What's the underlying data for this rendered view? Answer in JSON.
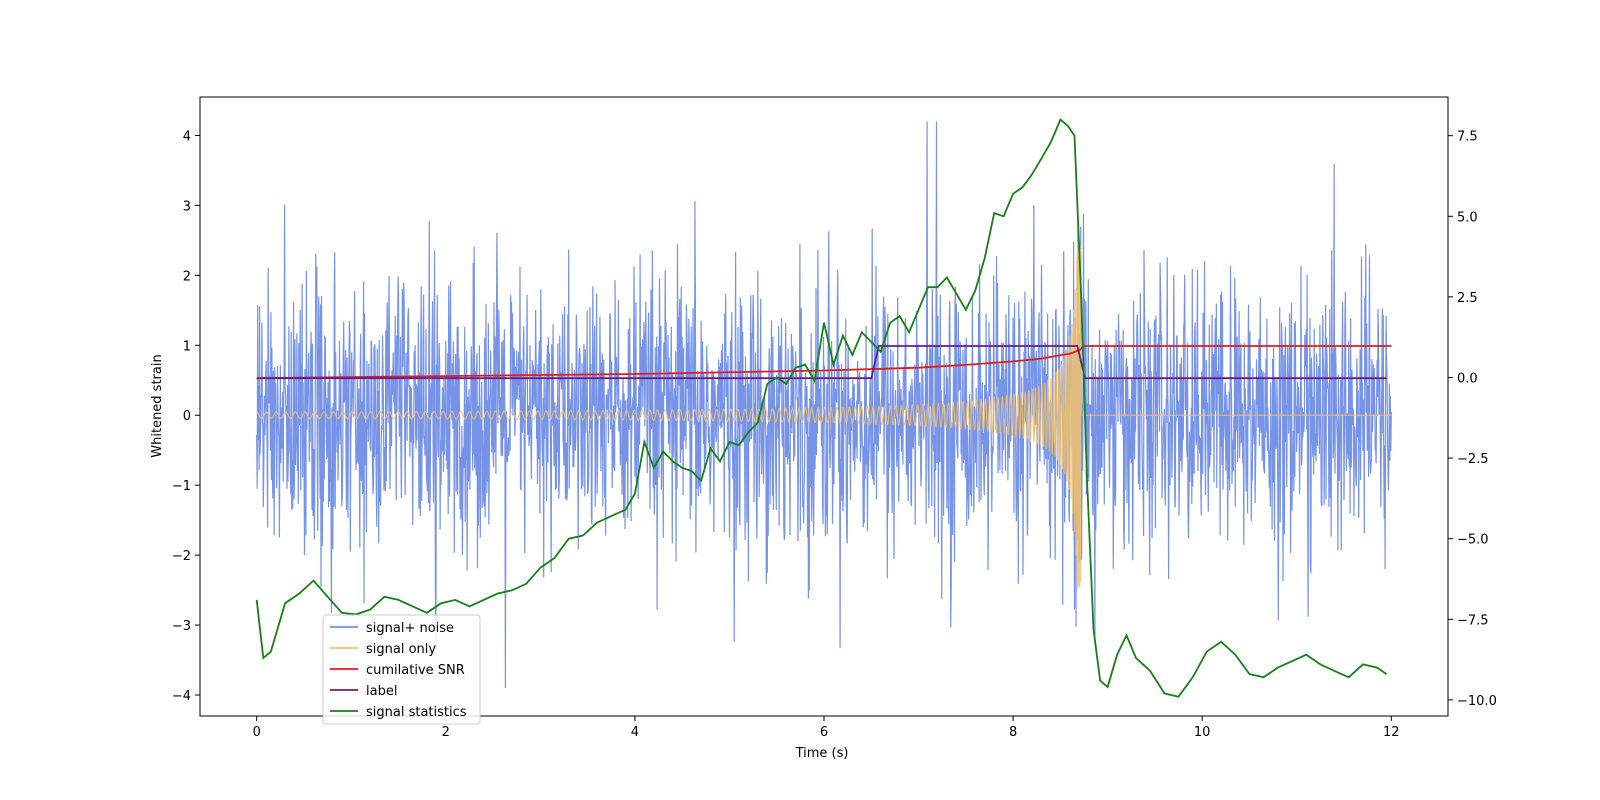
{
  "chart_data": {
    "type": "line",
    "title": "",
    "xlabel": "Time (s)",
    "ylabel": "Whitened strain",
    "y2label": "",
    "xlim": [
      -0.6,
      12.6
    ],
    "ylim": [
      -4.3,
      4.55
    ],
    "y2lim": [
      -10.5,
      8.7
    ],
    "xticks": [
      0,
      2,
      4,
      6,
      8,
      10,
      12
    ],
    "xtick_labels": [
      "0",
      "2",
      "4",
      "6",
      "8",
      "10",
      "12"
    ],
    "yticks": [
      -4,
      -3,
      -2,
      -1,
      0,
      1,
      2,
      3,
      4
    ],
    "ytick_labels": [
      "−4",
      "−3",
      "−2",
      "−1",
      "0",
      "1",
      "2",
      "3",
      "4"
    ],
    "y2ticks": [
      -10,
      -7.5,
      -5,
      -2.5,
      0,
      2.5,
      5,
      7.5
    ],
    "y2tick_labels": [
      "−10.0",
      "−7.5",
      "−5.0",
      "−2.5",
      "0.0",
      "2.5",
      "5.0",
      "7.5"
    ],
    "grid": false,
    "legend_position": "lower-left",
    "series": [
      {
        "name": "signal+ noise",
        "color": "#6f8de6",
        "axis": "left",
        "x_range": [
          0,
          12
        ],
        "noise_amplitude": 1.45,
        "peak_min": -3.9,
        "peak_max": 4.2
      },
      {
        "name": "signal only",
        "color": "#f5c26b",
        "axis": "left",
        "x_range": [
          0,
          12
        ],
        "merger_time": 8.72,
        "peak_amplitude": 2.5
      },
      {
        "name": "cumilative SNR",
        "color": "#e31a1c",
        "axis": "left",
        "x": [
          0,
          2,
          4,
          6,
          7,
          7.5,
          8,
          8.3,
          8.5,
          8.6,
          8.7,
          8.75,
          9,
          10,
          11,
          12
        ],
        "y": [
          0.53,
          0.56,
          0.59,
          0.64,
          0.68,
          0.72,
          0.77,
          0.81,
          0.86,
          0.88,
          0.93,
          0.99,
          0.99,
          0.99,
          0.99,
          0.99
        ]
      },
      {
        "name": "label",
        "color": "#6a1a8a",
        "axis": "left",
        "x": [
          0,
          6.5,
          6.58,
          8.68,
          8.76,
          11.95
        ],
        "y": [
          0.53,
          0.53,
          0.99,
          0.99,
          0.53,
          0.53
        ]
      },
      {
        "name": "signal statistics",
        "color": "#168016",
        "axis": "right",
        "x": [
          0,
          0.07,
          0.15,
          0.3,
          0.45,
          0.6,
          0.75,
          0.9,
          1.05,
          1.2,
          1.35,
          1.5,
          1.65,
          1.8,
          1.95,
          2.1,
          2.25,
          2.4,
          2.55,
          2.7,
          2.85,
          3.0,
          3.15,
          3.3,
          3.45,
          3.6,
          3.75,
          3.9,
          4.0,
          4.1,
          4.2,
          4.3,
          4.4,
          4.5,
          4.6,
          4.7,
          4.8,
          4.9,
          5.0,
          5.1,
          5.2,
          5.3,
          5.4,
          5.5,
          5.6,
          5.7,
          5.8,
          5.9,
          6.0,
          6.1,
          6.2,
          6.3,
          6.4,
          6.5,
          6.6,
          6.7,
          6.8,
          6.9,
          7.0,
          7.1,
          7.2,
          7.3,
          7.4,
          7.5,
          7.6,
          7.7,
          7.8,
          7.9,
          8.0,
          8.1,
          8.2,
          8.3,
          8.4,
          8.5,
          8.58,
          8.65,
          8.72,
          8.78,
          8.85,
          8.92,
          9.0,
          9.1,
          9.2,
          9.3,
          9.45,
          9.6,
          9.75,
          9.9,
          10.05,
          10.2,
          10.35,
          10.5,
          10.65,
          10.8,
          10.95,
          11.1,
          11.25,
          11.4,
          11.55,
          11.7,
          11.85,
          11.95
        ],
        "y": [
          -6.9,
          -8.7,
          -8.5,
          -7.0,
          -6.7,
          -6.3,
          -6.8,
          -7.3,
          -7.35,
          -7.2,
          -6.8,
          -6.9,
          -7.1,
          -7.3,
          -7.0,
          -6.9,
          -7.1,
          -6.9,
          -6.7,
          -6.6,
          -6.4,
          -5.9,
          -5.6,
          -5.0,
          -4.9,
          -4.5,
          -4.3,
          -4.1,
          -3.6,
          -2.0,
          -2.8,
          -2.3,
          -2.6,
          -2.8,
          -2.9,
          -3.2,
          -2.2,
          -2.6,
          -2.0,
          -2.1,
          -1.7,
          -1.4,
          -0.2,
          0.0,
          -0.2,
          0.3,
          0.4,
          -0.1,
          1.7,
          0.4,
          1.3,
          0.7,
          1.4,
          1.1,
          0.8,
          1.7,
          1.9,
          1.4,
          2.1,
          2.8,
          2.8,
          3.1,
          2.6,
          2.1,
          2.7,
          3.7,
          5.1,
          5.0,
          5.7,
          5.9,
          6.3,
          6.8,
          7.3,
          8.0,
          7.8,
          7.5,
          2.5,
          -3.0,
          -7.8,
          -9.4,
          -9.6,
          -8.6,
          -8.0,
          -8.7,
          -9.1,
          -9.8,
          -9.9,
          -9.3,
          -8.5,
          -8.2,
          -8.6,
          -9.2,
          -9.3,
          -9.0,
          -8.8,
          -8.6,
          -8.9,
          -9.1,
          -9.3,
          -8.9,
          -9.0,
          -9.2
        ]
      }
    ]
  }
}
